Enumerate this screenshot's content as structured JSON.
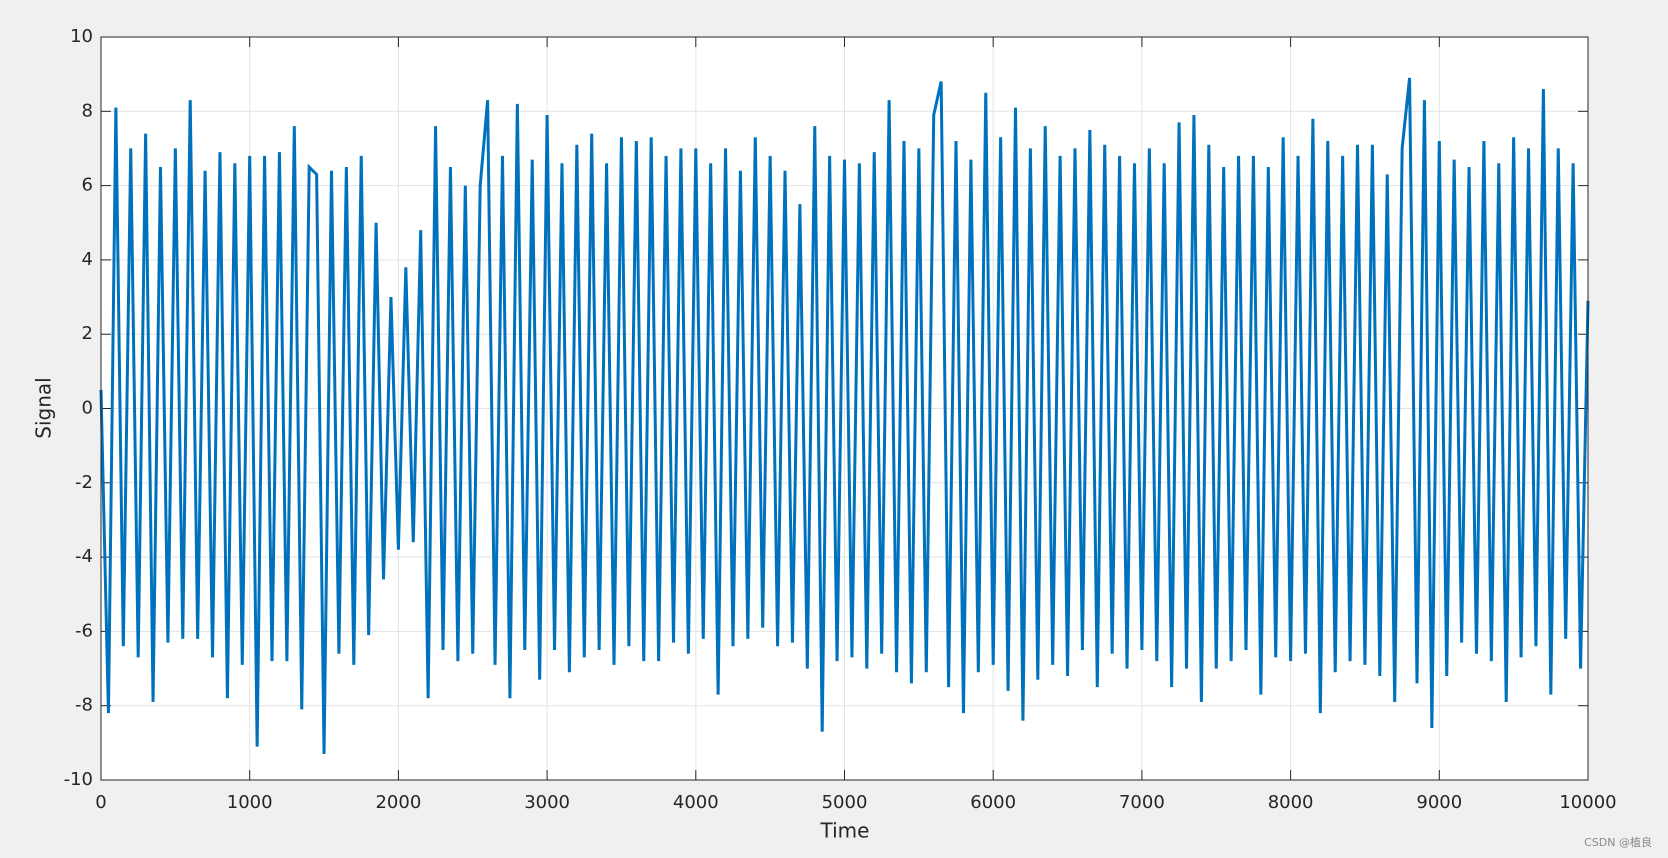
{
  "chart_data": {
    "type": "line",
    "xlabel": "Time",
    "ylabel": "Signal",
    "color": "#0072bd",
    "grid": true,
    "xlim": [
      0,
      10000
    ],
    "ylim": [
      -10,
      10
    ],
    "xticks": [
      0,
      1000,
      2000,
      3000,
      4000,
      5000,
      6000,
      7000,
      8000,
      9000,
      10000
    ],
    "yticks": [
      -10,
      -8,
      -6,
      -4,
      -2,
      0,
      2,
      4,
      6,
      8,
      10
    ],
    "x": [
      0,
      50,
      100,
      150,
      200,
      250,
      300,
      350,
      400,
      450,
      500,
      550,
      600,
      650,
      700,
      750,
      800,
      850,
      900,
      950,
      1000,
      1050,
      1100,
      1150,
      1200,
      1250,
      1300,
      1350,
      1400,
      1450,
      1500,
      1550,
      1600,
      1650,
      1700,
      1750,
      1800,
      1850,
      1900,
      1950,
      2000,
      2050,
      2100,
      2150,
      2200,
      2250,
      2300,
      2350,
      2400,
      2450,
      2500,
      2550,
      2600,
      2650,
      2700,
      2750,
      2800,
      2850,
      2900,
      2950,
      3000,
      3050,
      3100,
      3150,
      3200,
      3250,
      3300,
      3350,
      3400,
      3450,
      3500,
      3550,
      3600,
      3650,
      3700,
      3750,
      3800,
      3850,
      3900,
      3950,
      4000,
      4050,
      4100,
      4150,
      4200,
      4250,
      4300,
      4350,
      4400,
      4450,
      4500,
      4550,
      4600,
      4650,
      4700,
      4750,
      4800,
      4850,
      4900,
      4950,
      5000,
      5050,
      5100,
      5150,
      5200,
      5250,
      5300,
      5350,
      5400,
      5450,
      5500,
      5550,
      5600,
      5650,
      5700,
      5750,
      5800,
      5850,
      5900,
      5950,
      6000,
      6050,
      6100,
      6150,
      6200,
      6250,
      6300,
      6350,
      6400,
      6450,
      6500,
      6550,
      6600,
      6650,
      6700,
      6750,
      6800,
      6850,
      6900,
      6950,
      7000,
      7050,
      7100,
      7150,
      7200,
      7250,
      7300,
      7350,
      7400,
      7450,
      7500,
      7550,
      7600,
      7650,
      7700,
      7750,
      7800,
      7850,
      7900,
      7950,
      8000,
      8050,
      8100,
      8150,
      8200,
      8250,
      8300,
      8350,
      8400,
      8450,
      8500,
      8550,
      8600,
      8650,
      8700,
      8750,
      8800,
      8850,
      8900,
      8950,
      9000,
      9050,
      9100,
      9150,
      9200,
      9250,
      9300,
      9350,
      9400,
      9450,
      9500,
      9550,
      9600,
      9650,
      9700,
      9750,
      9800,
      9850,
      9900,
      9950,
      10000
    ],
    "values": [
      0.5,
      -8.2,
      8.1,
      -6.4,
      7.0,
      -6.7,
      7.4,
      -7.9,
      6.5,
      -6.3,
      7.0,
      -6.2,
      8.3,
      -6.2,
      6.4,
      -6.7,
      6.9,
      -7.8,
      6.6,
      -6.9,
      6.8,
      -9.1,
      6.8,
      -6.8,
      6.9,
      -6.8,
      7.6,
      -8.1,
      6.5,
      6.3,
      -9.3,
      6.4,
      -6.6,
      6.5,
      -6.9,
      6.8,
      -6.1,
      5.0,
      -4.6,
      3.0,
      -3.8,
      3.8,
      -3.6,
      4.8,
      -7.8,
      7.6,
      -6.5,
      6.5,
      -6.8,
      6.0,
      -6.6,
      6.0,
      8.3,
      -6.9,
      6.8,
      -7.8,
      8.2,
      -6.5,
      6.7,
      -7.3,
      7.9,
      -6.5,
      6.6,
      -7.1,
      7.1,
      -6.7,
      7.4,
      -6.5,
      6.6,
      -6.9,
      7.3,
      -6.4,
      7.2,
      -6.8,
      7.3,
      -6.8,
      6.8,
      -6.3,
      7.0,
      -6.6,
      7.0,
      -6.2,
      6.6,
      -7.7,
      7.0,
      -6.4,
      6.4,
      -6.2,
      7.3,
      -5.9,
      6.8,
      -6.4,
      6.4,
      -6.3,
      5.5,
      -7.0,
      7.6,
      -8.7,
      6.8,
      -6.8,
      6.7,
      -6.7,
      6.6,
      -7.0,
      6.9,
      -6.6,
      8.3,
      -7.1,
      7.2,
      -7.4,
      7.0,
      -7.1,
      7.9,
      8.8,
      -7.5,
      7.2,
      -8.2,
      6.7,
      -7.1,
      8.5,
      -6.9,
      7.3,
      -7.6,
      8.1,
      -8.4,
      7.0,
      -7.3,
      7.6,
      -6.9,
      6.8,
      -7.2,
      7.0,
      -6.5,
      7.5,
      -7.5,
      7.1,
      -6.6,
      6.8,
      -7.0,
      6.6,
      -6.5,
      7.0,
      -6.8,
      6.6,
      -7.5,
      7.7,
      -7.0,
      7.9,
      -7.9,
      7.1,
      -7.0,
      6.5,
      -6.8,
      6.8,
      -6.5,
      6.8,
      -7.7,
      6.5,
      -6.7,
      7.3,
      -6.8,
      6.8,
      -6.6,
      7.8,
      -8.2,
      7.2,
      -7.1,
      6.8,
      -6.8,
      7.1,
      -6.9,
      7.1,
      -7.2,
      6.3,
      -7.9,
      7.0,
      8.9,
      -7.4,
      8.3,
      -8.6,
      7.2,
      -7.2,
      6.7,
      -6.3,
      6.5,
      -6.6,
      7.2,
      -6.8,
      6.6,
      -7.9,
      7.3,
      -6.7,
      7.0,
      -6.4,
      8.6,
      -7.7,
      7.0,
      -6.2,
      6.6,
      -7.0,
      2.9
    ]
  },
  "watermark": "CSDN @植良"
}
